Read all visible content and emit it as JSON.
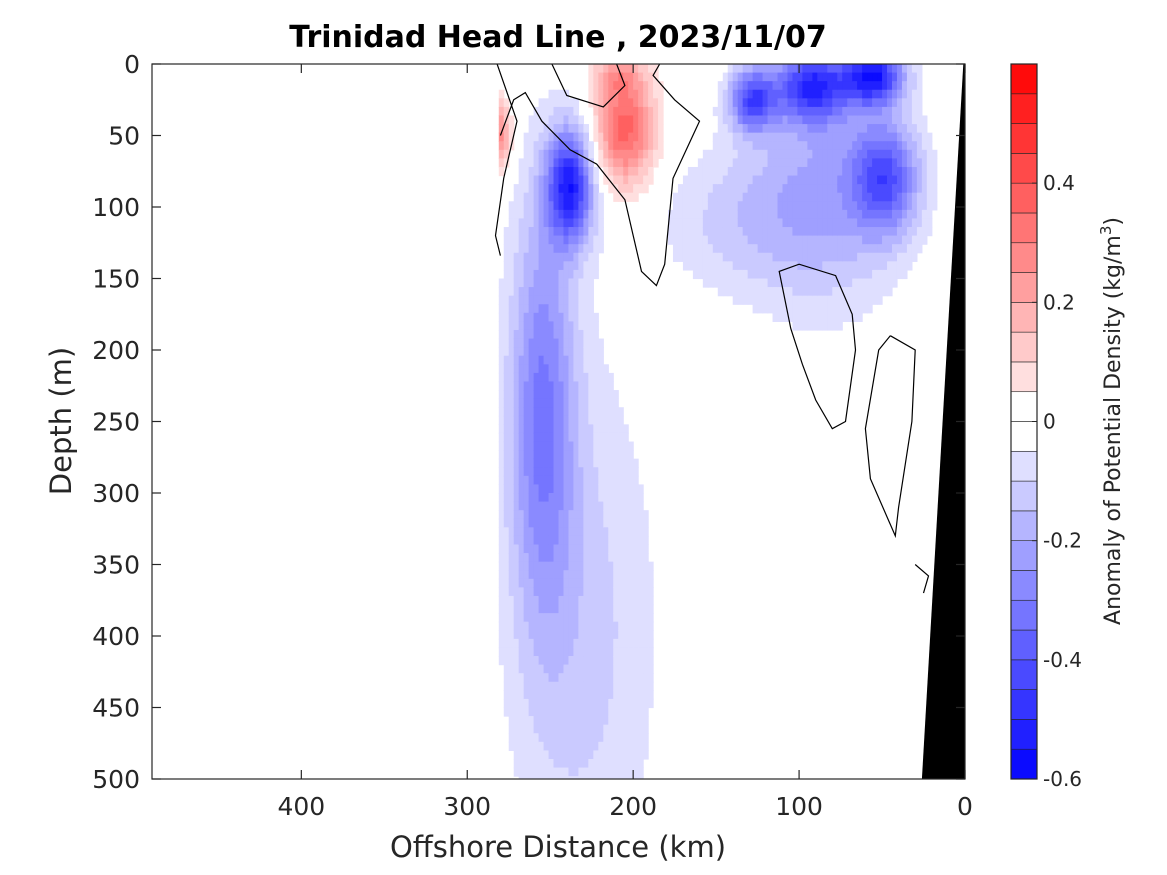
{
  "chart_data": {
    "type": "heatmap",
    "title": "Trinidad Head Line , 2023/11/07",
    "xlabel": "Offshore Distance (km)",
    "ylabel": "Depth (m)",
    "xlim": [
      490,
      0
    ],
    "ylim": [
      0,
      500
    ],
    "x_axis_reversed": true,
    "y_axis_reversed": true,
    "x_ticks": [
      "400",
      "300",
      "200",
      "100",
      "0"
    ],
    "x_tick_values": [
      400,
      300,
      200,
      100,
      0
    ],
    "y_ticks": [
      "0",
      "50",
      "100",
      "150",
      "200",
      "250",
      "300",
      "350",
      "400",
      "450",
      "500"
    ],
    "y_tick_values": [
      0,
      50,
      100,
      150,
      200,
      250,
      300,
      350,
      400,
      450,
      500
    ],
    "colorbar": {
      "label": "Anomaly of Potential Density (kg/m",
      "label_superscript": "3",
      "label_close": ")",
      "range": [
        -0.6,
        0.6
      ],
      "levels": 24,
      "ticks": [
        "0.4",
        "0.2",
        "0",
        "-0.2",
        "-0.4",
        "-0.6"
      ],
      "tick_values": [
        0.4,
        0.2,
        0,
        -0.2,
        -0.4,
        -0.6
      ]
    },
    "data_extent_km": [
      281,
      10
    ],
    "contour_zero_line": true,
    "bathymetry_color": "#000000",
    "features": [
      {
        "kind": "negative_core",
        "x_km": 238,
        "depth_m": 85,
        "value": -0.5
      },
      {
        "kind": "negative_plume",
        "x_km": 255,
        "depth_m": 250,
        "value": -0.3
      },
      {
        "kind": "positive_core",
        "x_km": 205,
        "depth_m": 45,
        "value": 0.35
      },
      {
        "kind": "positive_edge",
        "x_km": 278,
        "depth_m": 50,
        "value": 0.3
      },
      {
        "kind": "negative_surface",
        "x_km": 55,
        "depth_m": 10,
        "value": -0.5
      },
      {
        "kind": "negative_surface",
        "x_km": 90,
        "depth_m": 15,
        "value": -0.45
      },
      {
        "kind": "negative_subsurface",
        "x_km": 50,
        "depth_m": 80,
        "value": -0.35
      }
    ]
  }
}
